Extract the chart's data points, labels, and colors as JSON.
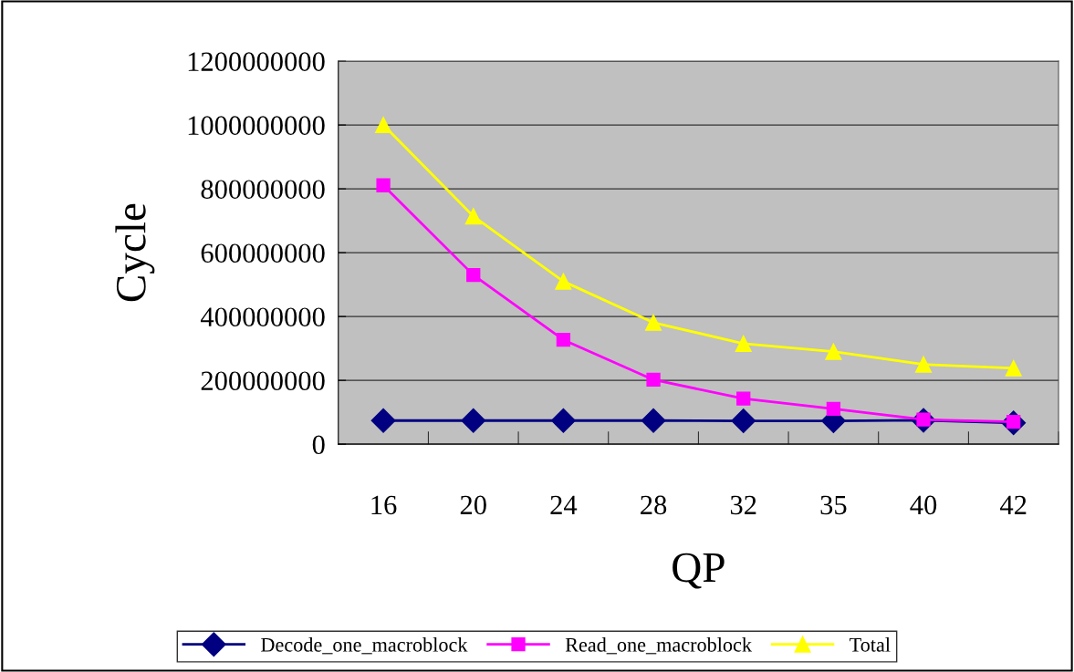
{
  "chart_data": {
    "type": "line",
    "xlabel": "QP",
    "ylabel": "Cycle",
    "categories": [
      "16",
      "20",
      "24",
      "28",
      "32",
      "35",
      "40",
      "42"
    ],
    "series": [
      {
        "name": "Decode_one_macroblock",
        "color": "#000080",
        "marker": "diamond",
        "values": [
          74000000,
          74000000,
          74000000,
          74000000,
          73000000,
          73000000,
          75000000,
          67000000
        ]
      },
      {
        "name": "Read_one_macroblock",
        "color": "#ff00ff",
        "marker": "square",
        "values": [
          811000000,
          530000000,
          327000000,
          202000000,
          143000000,
          111000000,
          77000000,
          70000000
        ]
      },
      {
        "name": "Total",
        "color": "#ffff00",
        "marker": "triangle",
        "values": [
          1000000000,
          714000000,
          510000000,
          381000000,
          315000000,
          290000000,
          250000000,
          238000000
        ]
      }
    ],
    "ylim": [
      0,
      1200000000
    ],
    "yticks": [
      0,
      200000000,
      400000000,
      600000000,
      800000000,
      1000000000,
      1200000000
    ],
    "grid": "y",
    "legend": "bottom",
    "line_style": "solid"
  }
}
